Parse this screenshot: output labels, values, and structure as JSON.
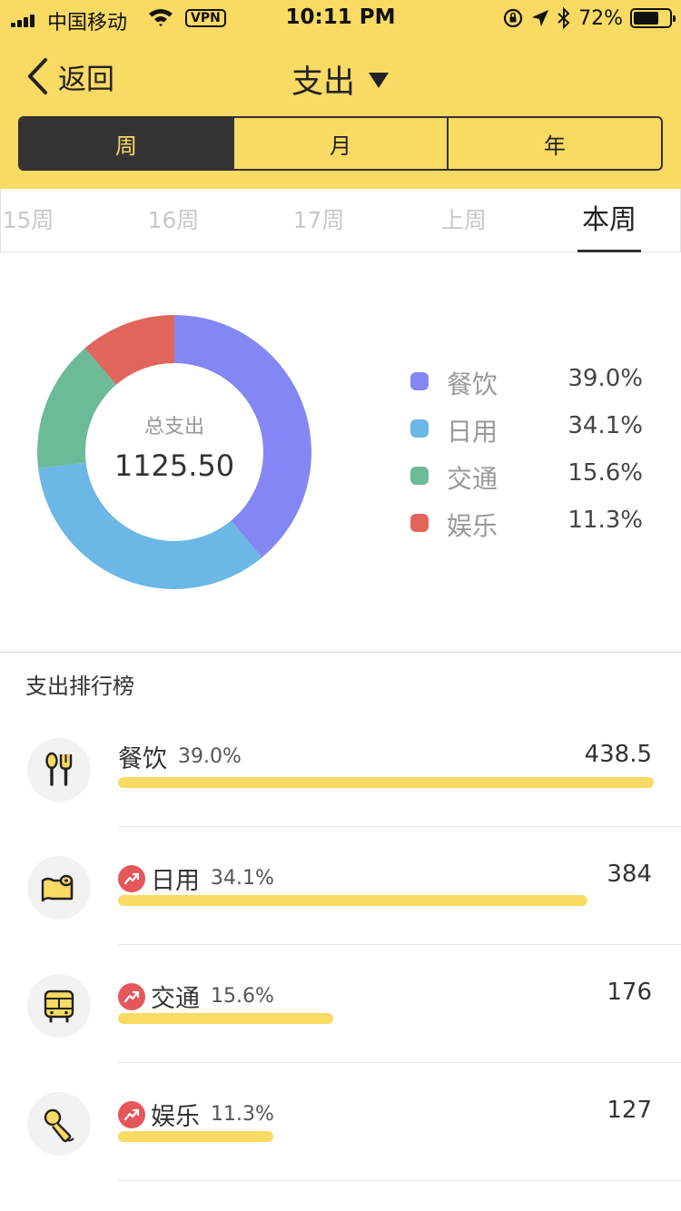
{
  "status_bar": {
    "carrier": "中国移动",
    "vpn": "VPN",
    "time": "10:11 PM",
    "battery": "72%",
    "battery_level": 0.72
  },
  "nav": {
    "back_label": "返回",
    "title": "支出"
  },
  "segments": [
    {
      "label": "周",
      "active": true
    },
    {
      "label": "月",
      "active": false
    },
    {
      "label": "年",
      "active": false
    }
  ],
  "period_tabs": [
    {
      "label": "15周",
      "active": false
    },
    {
      "label": "16周",
      "active": false
    },
    {
      "label": "17周",
      "active": false
    },
    {
      "label": "上周",
      "active": false
    },
    {
      "label": "本周",
      "active": true
    }
  ],
  "summary": {
    "total_label": "总支出",
    "total_value": "1125.50"
  },
  "chart_data": {
    "type": "pie",
    "categories": [
      "餐饮",
      "日用",
      "交通",
      "娱乐"
    ],
    "values": [
      39.0,
      34.1,
      15.6,
      11.3
    ],
    "labels": [
      "39.0%",
      "34.1%",
      "15.6%",
      "11.3%"
    ],
    "colors": [
      "#8487F3",
      "#6BB7E5",
      "#6BBB99",
      "#E0655B"
    ],
    "title": "",
    "legend_position": "right",
    "center_label": "总支出",
    "center_value": "1125.50"
  },
  "ranking": {
    "title": "支出排行榜",
    "items": [
      {
        "name": "餐饮",
        "pct": "39.0%",
        "amount": "438.5",
        "bar_fraction": 1.0,
        "icon": "utensils-icon",
        "trend": false
      },
      {
        "name": "日用",
        "pct": "34.1%",
        "amount": "384",
        "bar_fraction": 0.876,
        "icon": "toilet-paper-icon",
        "trend": true
      },
      {
        "name": "交通",
        "pct": "15.6%",
        "amount": "176",
        "bar_fraction": 0.401,
        "icon": "bus-icon",
        "trend": true
      },
      {
        "name": "娱乐",
        "pct": "11.3%",
        "amount": "127",
        "bar_fraction": 0.29,
        "icon": "microphone-icon",
        "trend": true
      }
    ]
  },
  "colors": {
    "header": "#F9DA63",
    "segment_active_bg": "#333333",
    "trend_red": "#E5575A"
  }
}
